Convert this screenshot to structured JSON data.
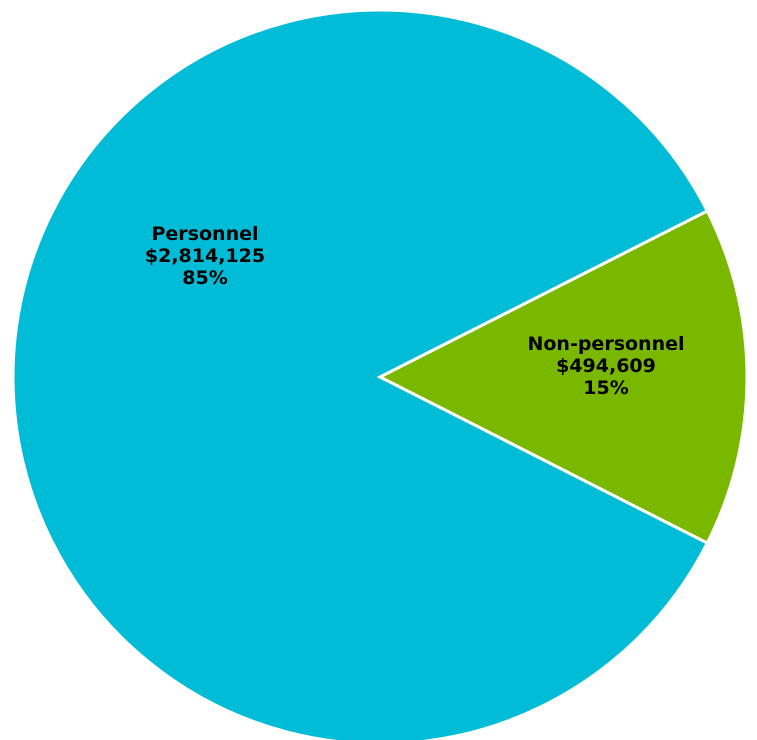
{
  "chart_data": {
    "type": "pie",
    "slices": [
      {
        "name": "Personnel",
        "value": 2814125,
        "value_label": "$2,814,125",
        "percent_label": "85%",
        "color": "#00BCD6"
      },
      {
        "name": "Non-personnel",
        "value": 494609,
        "value_label": "$494,609",
        "percent_label": "15%",
        "color": "#7AB800"
      }
    ]
  }
}
